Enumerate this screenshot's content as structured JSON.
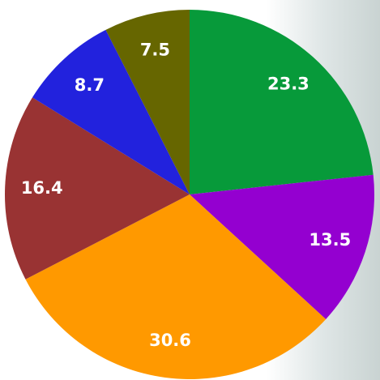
{
  "chart_data": {
    "type": "pie",
    "values": [
      23.3,
      13.5,
      30.6,
      16.4,
      8.7,
      7.5
    ],
    "colors": [
      "#079a3a",
      "#9400d0",
      "#ff9900",
      "#993333",
      "#2222dd",
      "#666600"
    ]
  }
}
